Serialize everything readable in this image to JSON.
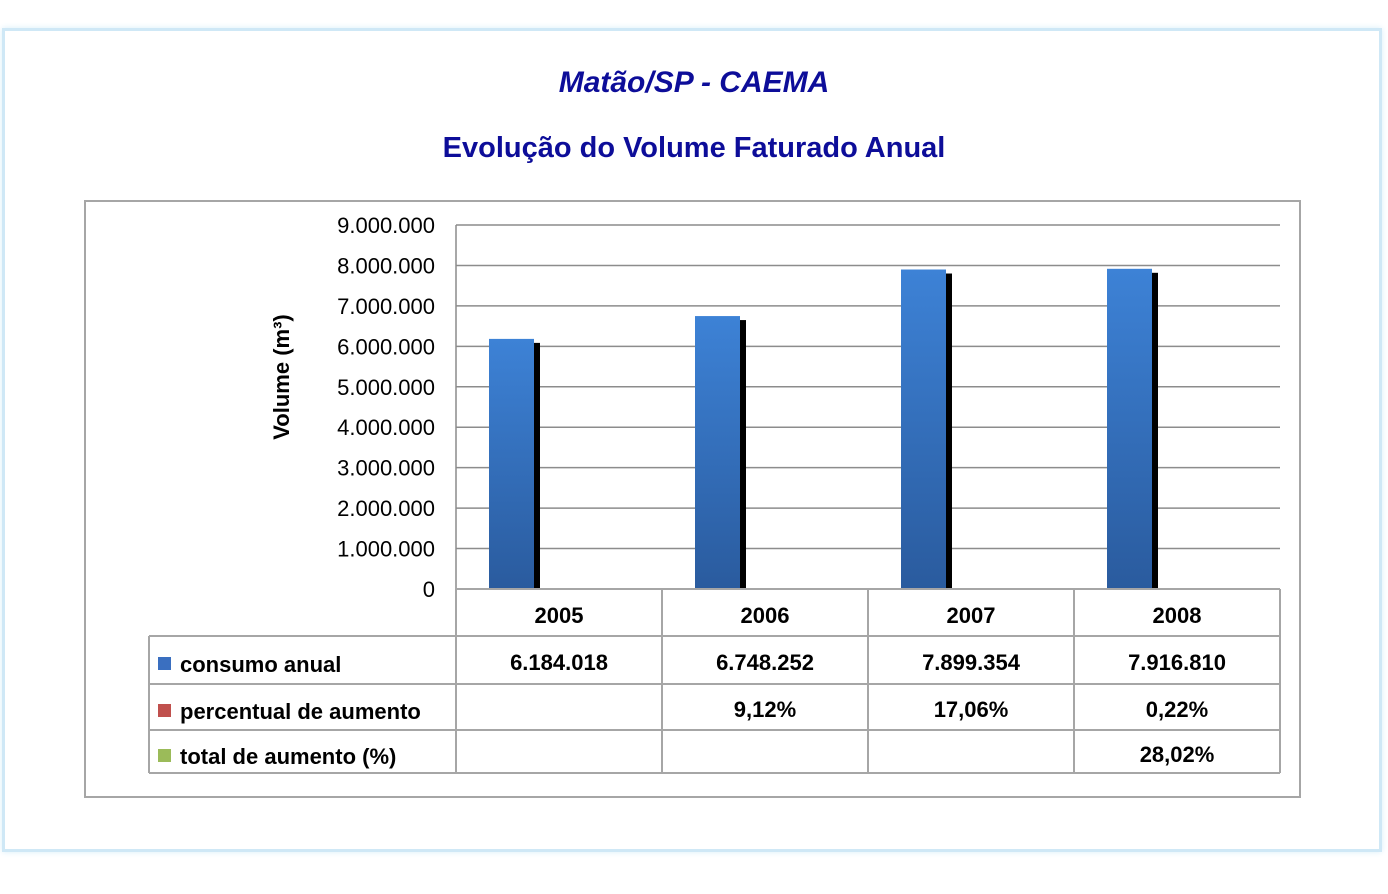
{
  "header": {
    "title": "Matão/SP - CAEMA",
    "subtitle": "Evolução do Volume Faturado Anual"
  },
  "chart_data": {
    "type": "bar",
    "ylabel": "Volume (m³)",
    "ylim": [
      0,
      9000000
    ],
    "y_ticks": [
      "0",
      "1.000.000",
      "2.000.000",
      "3.000.000",
      "4.000.000",
      "5.000.000",
      "6.000.000",
      "7.000.000",
      "8.000.000",
      "9.000.000"
    ],
    "grid": true,
    "categories": [
      "2005",
      "2006",
      "2007",
      "2008"
    ],
    "series": [
      {
        "name": "consumo anual",
        "values": [
          6184018,
          6748252,
          7899354,
          7916810
        ],
        "color": "#3a78c4"
      }
    ],
    "data_table": {
      "rows": [
        {
          "label": "consumo anual",
          "color": "#3a6fc0",
          "cells": [
            "6.184.018",
            "6.748.252",
            "7.899.354",
            "7.916.810"
          ]
        },
        {
          "label": "percentual de aumento",
          "color": "#c0504d",
          "cells": [
            "",
            "9,12%",
            "17,06%",
            "0,22%"
          ]
        },
        {
          "label": "total de aumento (%)",
          "color": "#9bbb59",
          "cells": [
            "",
            "",
            "",
            "28,02%"
          ]
        }
      ]
    }
  }
}
